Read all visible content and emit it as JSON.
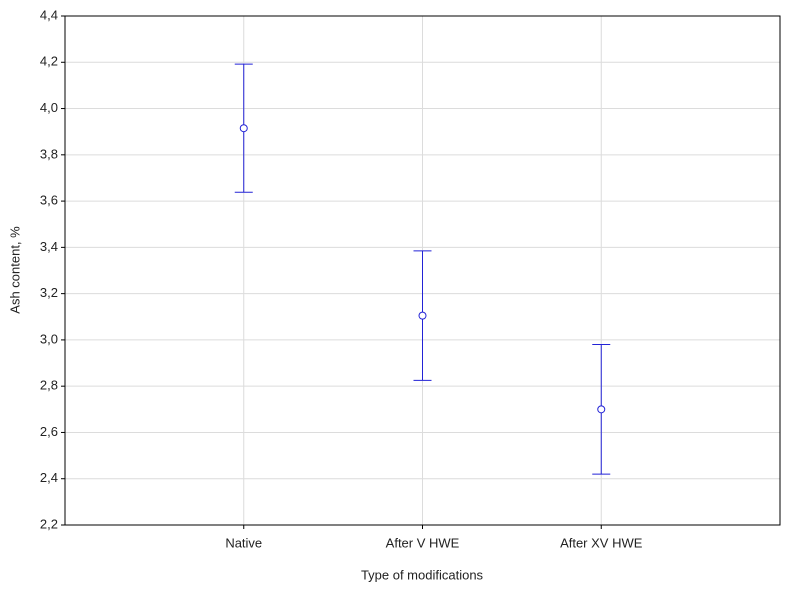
{
  "chart_data": {
    "type": "errorbar",
    "x_label": "Type of modifications",
    "y_label": "Ash content, %",
    "categories": [
      "Native",
      "After V HWE",
      "After XV HWE"
    ],
    "values": [
      3.915,
      3.105,
      2.7
    ],
    "errors": [
      0.277,
      0.28,
      0.28
    ],
    "color": "#2323d6",
    "ylim": [
      2.2,
      4.4
    ],
    "yticks": [
      {
        "value": 2.2,
        "label": "2,2"
      },
      {
        "value": 2.4,
        "label": "2,4"
      },
      {
        "value": 2.6,
        "label": "2,6"
      },
      {
        "value": 2.8,
        "label": "2,8"
      },
      {
        "value": 3.0,
        "label": "3,0"
      },
      {
        "value": 3.2,
        "label": "3,2"
      },
      {
        "value": 3.4,
        "label": "3,4"
      },
      {
        "value": 3.6,
        "label": "3,6"
      },
      {
        "value": 3.8,
        "label": "3,8"
      },
      {
        "value": 4.0,
        "label": "4,0"
      },
      {
        "value": 4.2,
        "label": "4,2"
      },
      {
        "value": 4.4,
        "label": "4,4"
      }
    ],
    "grid": true
  }
}
